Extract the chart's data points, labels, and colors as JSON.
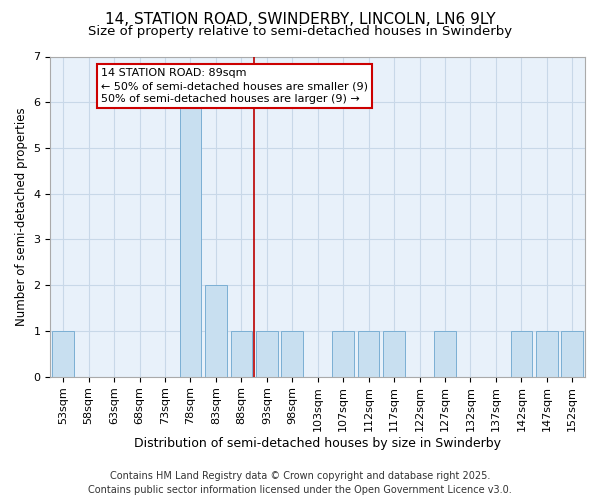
{
  "title1": "14, STATION ROAD, SWINDERBY, LINCOLN, LN6 9LY",
  "title2": "Size of property relative to semi-detached houses in Swinderby",
  "xlabel": "Distribution of semi-detached houses by size in Swinderby",
  "ylabel": "Number of semi-detached properties",
  "footnote": "Contains HM Land Registry data © Crown copyright and database right 2025.\nContains public sector information licensed under the Open Government Licence v3.0.",
  "categories": [
    "53sqm",
    "58sqm",
    "63sqm",
    "68sqm",
    "73sqm",
    "78sqm",
    "83sqm",
    "88sqm",
    "93sqm",
    "98sqm",
    "103sqm",
    "107sqm",
    "112sqm",
    "117sqm",
    "122sqm",
    "127sqm",
    "132sqm",
    "137sqm",
    "142sqm",
    "147sqm",
    "152sqm"
  ],
  "values": [
    1,
    0,
    0,
    0,
    0,
    6,
    2,
    1,
    1,
    1,
    0,
    1,
    1,
    1,
    0,
    1,
    0,
    0,
    1,
    1,
    1
  ],
  "bar_color": "#c8dff0",
  "bar_edge_color": "#7bafd4",
  "grid_color": "#c8d8e8",
  "bg_color": "#e8f1fa",
  "red_line_x": 7.5,
  "ylim": [
    0,
    7
  ],
  "yticks": [
    0,
    1,
    2,
    3,
    4,
    5,
    6,
    7
  ],
  "annotation_title": "14 STATION ROAD: 89sqm",
  "annotation_line1": "← 50% of semi-detached houses are smaller (9)",
  "annotation_line2": "50% of semi-detached houses are larger (9) →",
  "annotation_box_color": "#ffffff",
  "annotation_box_edge": "#cc0000",
  "red_line_color": "#bb0000",
  "title1_fontsize": 11,
  "title2_fontsize": 9.5,
  "xlabel_fontsize": 9,
  "ylabel_fontsize": 8.5,
  "tick_fontsize": 8,
  "annotation_fontsize": 8,
  "footnote_fontsize": 7
}
